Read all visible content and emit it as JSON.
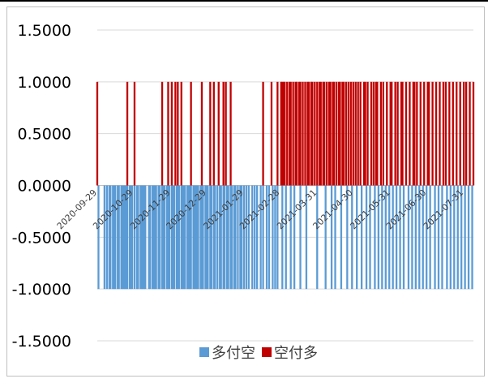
{
  "chart_data": {
    "type": "bar",
    "title": "",
    "xlabel": "",
    "ylabel": "",
    "ylim": [
      -1.5,
      1.5
    ],
    "yticks": [
      1.5,
      1.0,
      0.5,
      0.0,
      -0.5,
      -1.0,
      -1.5
    ],
    "ytick_labels": [
      "1.5000",
      "1.0000",
      "0.5000",
      "0.0000",
      "-0.5000",
      "-1.0000",
      "-1.5000"
    ],
    "xtick_labels": [
      "2020-09-29",
      "2020-10-29",
      "2020-11-29",
      "2020-12-29",
      "2021-01-29",
      "2021-02-28",
      "2021-03-31",
      "2021-04-30",
      "2021-05-31",
      "2021-06-30",
      "2021-07-31"
    ],
    "grid": true,
    "legend_position": "bottom",
    "series": [
      {
        "name": "多付空",
        "color": "#5B9BD5",
        "value": -1,
        "dates": [
          "2020-09-30",
          "2020-10-05",
          "2020-10-07",
          "2020-10-09",
          "2020-10-10",
          "2020-10-12",
          "2020-10-13",
          "2020-10-14",
          "2020-10-16",
          "2020-10-17",
          "2020-10-19",
          "2020-10-20",
          "2020-10-21",
          "2020-10-22",
          "2020-10-23",
          "2020-10-24",
          "2020-10-26",
          "2020-10-27",
          "2020-10-28",
          "2020-10-30",
          "2020-11-01",
          "2020-11-02",
          "2020-11-04",
          "2020-11-05",
          "2020-11-06",
          "2020-11-07",
          "2020-11-08",
          "2020-11-11",
          "2020-11-12",
          "2020-11-14",
          "2020-11-15",
          "2020-11-16",
          "2020-11-17",
          "2020-11-19",
          "2020-11-20",
          "2020-11-22",
          "2020-11-23",
          "2020-11-24",
          "2020-11-26",
          "2020-11-27",
          "2020-11-28",
          "2020-11-30",
          "2020-12-01",
          "2020-12-02",
          "2020-12-04",
          "2020-12-05",
          "2020-12-06",
          "2020-12-08",
          "2020-12-09",
          "2020-12-10",
          "2020-12-11",
          "2020-12-13",
          "2020-12-14",
          "2020-12-15",
          "2020-12-16",
          "2020-12-18",
          "2020-12-19",
          "2020-12-20",
          "2020-12-21",
          "2020-12-22",
          "2020-12-24",
          "2020-12-25",
          "2020-12-26",
          "2020-12-28",
          "2020-12-29",
          "2020-12-30",
          "2021-01-01",
          "2021-01-02",
          "2021-01-04",
          "2021-01-05",
          "2021-01-07",
          "2021-01-09",
          "2021-01-10",
          "2021-01-12",
          "2021-01-13",
          "2021-01-15",
          "2021-01-16",
          "2021-01-18",
          "2021-01-19",
          "2021-01-21",
          "2021-01-22",
          "2021-01-24",
          "2021-01-26",
          "2021-01-27",
          "2021-01-29",
          "2021-01-31",
          "2021-02-02",
          "2021-02-05",
          "2021-02-07",
          "2021-02-09",
          "2021-02-12",
          "2021-02-14",
          "2021-02-17",
          "2021-02-19",
          "2021-02-22",
          "2021-02-24",
          "2021-02-26",
          "2021-03-02",
          "2021-03-05",
          "2021-03-09",
          "2021-03-12",
          "2021-03-17",
          "2021-03-22",
          "2021-03-31",
          "2021-04-07",
          "2021-04-12",
          "2021-04-15",
          "2021-04-20",
          "2021-04-25",
          "2021-04-29",
          "2021-05-03",
          "2021-05-07",
          "2021-05-11",
          "2021-05-14",
          "2021-05-18",
          "2021-05-21",
          "2021-05-24",
          "2021-05-27",
          "2021-05-30",
          "2021-06-02",
          "2021-06-05",
          "2021-06-08",
          "2021-06-11",
          "2021-06-15",
          "2021-06-18",
          "2021-06-21",
          "2021-06-24",
          "2021-06-27",
          "2021-06-30",
          "2021-07-03",
          "2021-07-07",
          "2021-07-10",
          "2021-07-13",
          "2021-07-17",
          "2021-07-20",
          "2021-07-23",
          "2021-07-26",
          "2021-07-29",
          "2021-08-01",
          "2021-08-04",
          "2021-08-07"
        ]
      },
      {
        "name": "空付多",
        "color": "#C00000",
        "value": 1,
        "dates": [
          "2020-09-29",
          "2020-10-24",
          "2020-10-30",
          "2020-11-22",
          "2020-11-27",
          "2020-11-30",
          "2020-12-03",
          "2020-12-05",
          "2020-12-08",
          "2020-12-16",
          "2020-12-25",
          "2021-01-01",
          "2021-01-04",
          "2021-01-08",
          "2021-01-12",
          "2021-01-14",
          "2021-01-18",
          "2021-02-14",
          "2021-02-21",
          "2021-02-26",
          "2021-03-01",
          "2021-03-02",
          "2021-03-03",
          "2021-03-04",
          "2021-03-06",
          "2021-03-08",
          "2021-03-09",
          "2021-03-11",
          "2021-03-13",
          "2021-03-14",
          "2021-03-16",
          "2021-03-17",
          "2021-03-19",
          "2021-03-21",
          "2021-03-23",
          "2021-03-24",
          "2021-03-26",
          "2021-03-27",
          "2021-03-29",
          "2021-03-31",
          "2021-04-02",
          "2021-04-03",
          "2021-04-05",
          "2021-04-06",
          "2021-04-08",
          "2021-04-10",
          "2021-04-11",
          "2021-04-13",
          "2021-04-14",
          "2021-04-16",
          "2021-04-18",
          "2021-04-19",
          "2021-04-21",
          "2021-04-22",
          "2021-04-24",
          "2021-04-26",
          "2021-04-28",
          "2021-04-30",
          "2021-05-02",
          "2021-05-04",
          "2021-05-06",
          "2021-05-09",
          "2021-05-10",
          "2021-05-12",
          "2021-05-15",
          "2021-05-17",
          "2021-05-19",
          "2021-05-20",
          "2021-05-23",
          "2021-05-25",
          "2021-05-28",
          "2021-05-31",
          "2021-06-01",
          "2021-06-04",
          "2021-06-06",
          "2021-06-09",
          "2021-06-10",
          "2021-06-13",
          "2021-06-16",
          "2021-06-19",
          "2021-06-20",
          "2021-06-22",
          "2021-06-25",
          "2021-06-28",
          "2021-07-01",
          "2021-07-02",
          "2021-07-05",
          "2021-07-08",
          "2021-07-11",
          "2021-07-14",
          "2021-07-16",
          "2021-07-19",
          "2021-07-22",
          "2021-07-25",
          "2021-07-28",
          "2021-07-31",
          "2021-08-02",
          "2021-08-05",
          "2021-08-08"
        ]
      }
    ]
  }
}
